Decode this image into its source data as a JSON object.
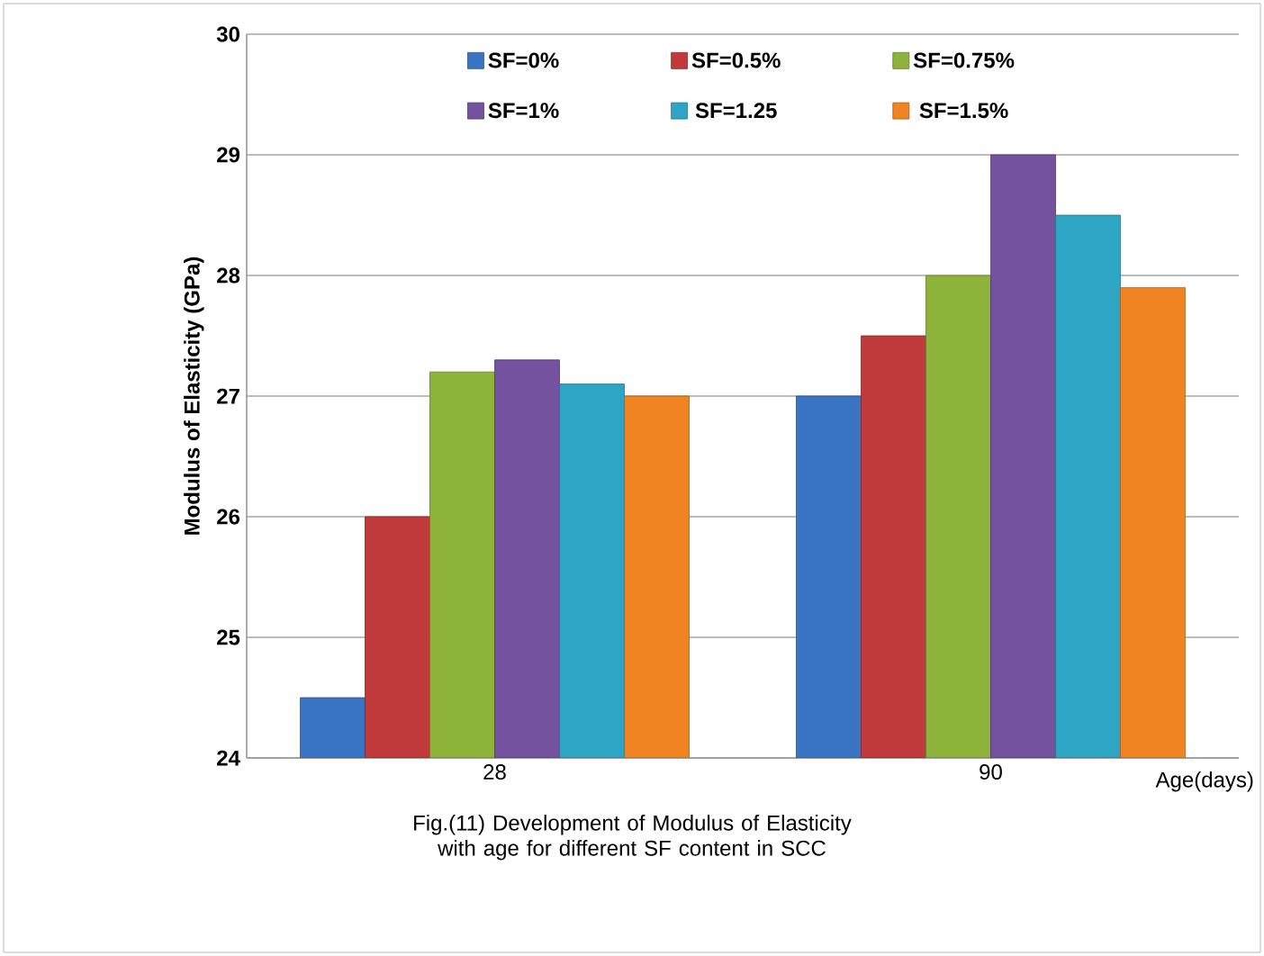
{
  "chart_data": {
    "type": "bar",
    "categories": [
      "28",
      "90"
    ],
    "series": [
      {
        "name": "SF=0%",
        "color": "#3a75c4",
        "values": [
          24.5,
          27.0
        ]
      },
      {
        "name": "SF=0.5%",
        "color": "#c0393b",
        "values": [
          26.0,
          27.5
        ]
      },
      {
        "name": "SF=0.75%",
        "color": "#8db33a",
        "values": [
          27.2,
          28.0
        ]
      },
      {
        "name": "SF=1%",
        "color": "#7552a0",
        "values": [
          27.3,
          29.0
        ]
      },
      {
        "name": "SF=1.25",
        "color": "#2fa5c6",
        "values": [
          27.1,
          28.5
        ]
      },
      {
        "name": "SF=1.5%",
        "color": "#f08422",
        "values": [
          27.0,
          27.9
        ]
      }
    ],
    "xlabel": "Age(days)",
    "ylabel": "Modulus of Elasticity (GPa)",
    "ylim": [
      24,
      30
    ],
    "yticks": [
      24,
      25,
      26,
      27,
      28,
      29,
      30
    ],
    "grid": "y",
    "legend": "top",
    "annotations": [
      "Fig.(11) Development of Modulus of Elasticity  with age for different  SF content in SCC"
    ]
  }
}
